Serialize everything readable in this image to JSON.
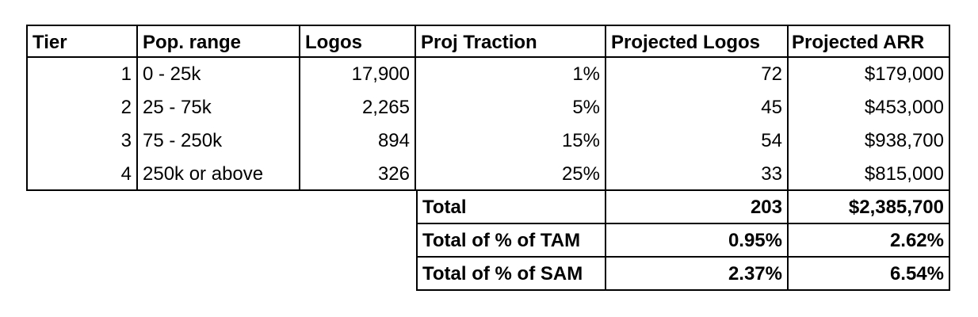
{
  "headers": [
    "Tier",
    "Pop. range",
    "Logos",
    "Proj Traction",
    "Projected Logos",
    "Projected ARR"
  ],
  "rows": [
    {
      "tier": "1",
      "range": "0 - 25k",
      "logos": "17,900",
      "traction": "1%",
      "proj_logos": "72",
      "arr": "$179,000"
    },
    {
      "tier": "2",
      "range": "25 - 75k",
      "logos": "2,265",
      "traction": "5%",
      "proj_logos": "45",
      "arr": "$453,000"
    },
    {
      "tier": "3",
      "range": "75 - 250k",
      "logos": "894",
      "traction": "15%",
      "proj_logos": "54",
      "arr": "$938,700"
    },
    {
      "tier": "4",
      "range": "250k or above",
      "logos": "326",
      "traction": "25%",
      "proj_logos": "33",
      "arr": "$815,000"
    }
  ],
  "summary": [
    {
      "label": "Total",
      "proj_logos": "203",
      "arr": "$2,385,700"
    },
    {
      "label": "Total of % of TAM",
      "proj_logos": "0.95%",
      "arr": "2.62%"
    },
    {
      "label": "Total of % of SAM",
      "proj_logos": "2.37%",
      "arr": "6.54%"
    }
  ]
}
